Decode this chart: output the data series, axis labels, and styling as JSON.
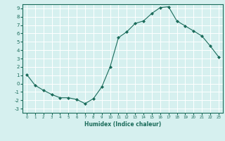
{
  "x": [
    0,
    1,
    2,
    3,
    4,
    5,
    6,
    7,
    8,
    9,
    10,
    11,
    12,
    13,
    14,
    15,
    16,
    17,
    18,
    19,
    20,
    21,
    22,
    23
  ],
  "y": [
    1.1,
    -0.2,
    -0.8,
    -1.3,
    -1.7,
    -1.7,
    -1.9,
    -2.4,
    -1.8,
    -0.4,
    2.0,
    5.5,
    6.2,
    7.2,
    7.5,
    8.4,
    9.1,
    9.2,
    7.5,
    6.9,
    6.3,
    5.7,
    4.5,
    3.2
  ],
  "xlabel": "Humidex (Indice chaleur)",
  "ylabel": "",
  "xlim": [
    -0.5,
    23.5
  ],
  "ylim": [
    -3.5,
    9.5
  ],
  "xticks": [
    0,
    1,
    2,
    3,
    4,
    5,
    6,
    7,
    8,
    9,
    10,
    11,
    12,
    13,
    14,
    15,
    16,
    17,
    18,
    19,
    20,
    21,
    22,
    23
  ],
  "yticks": [
    -3,
    -2,
    -1,
    0,
    1,
    2,
    3,
    4,
    5,
    6,
    7,
    8,
    9
  ],
  "line_color": "#1a6b5a",
  "bg_color": "#d6f0ef",
  "grid_color": "#ffffff",
  "marker": "D",
  "marker_size": 2.0,
  "tick_color": "#1a6b5a"
}
